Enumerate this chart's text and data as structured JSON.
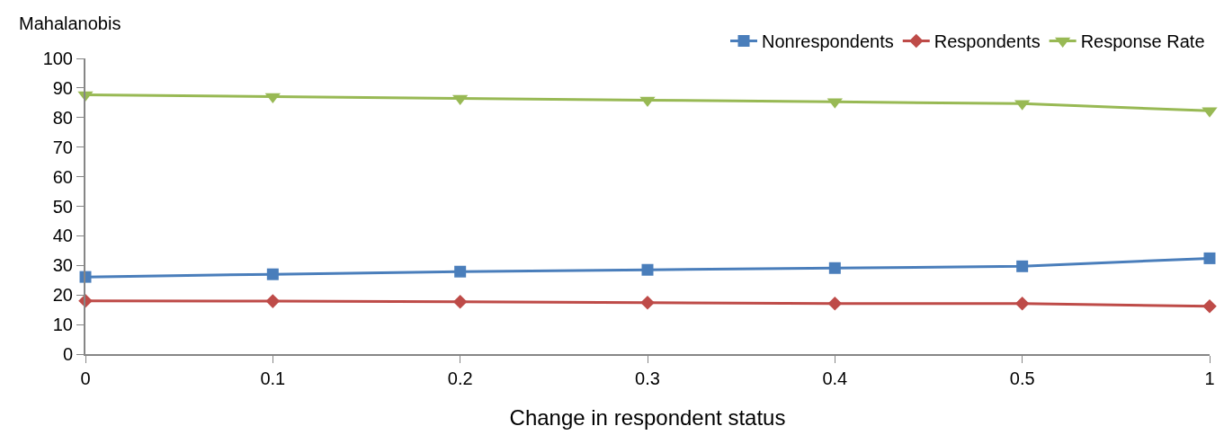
{
  "chart_data": {
    "type": "line",
    "xlabel": "Change in respondent status",
    "ylabel": "Mahalanobis",
    "categories": [
      "0",
      "0.1",
      "0.2",
      "0.3",
      "0.4",
      "0.5",
      "1"
    ],
    "ylim": [
      0,
      100
    ],
    "yticks": [
      0,
      10,
      20,
      30,
      40,
      50,
      60,
      70,
      80,
      90,
      100
    ],
    "legend": "top right",
    "series": [
      {
        "name": "Nonrespondents",
        "color": "#4a7ebb",
        "marker": "square",
        "values": [
          26.1,
          27.0,
          27.9,
          28.5,
          29.1,
          29.7,
          32.4
        ]
      },
      {
        "name": "Respondents",
        "color": "#be4b48",
        "marker": "diamond",
        "values": [
          18.0,
          17.9,
          17.7,
          17.4,
          17.1,
          17.1,
          16.2
        ]
      },
      {
        "name": "Response Rate",
        "color": "#98b954",
        "marker": "triangle",
        "values": [
          87.7,
          87.1,
          86.5,
          85.9,
          85.3,
          84.7,
          82.3
        ]
      }
    ]
  }
}
